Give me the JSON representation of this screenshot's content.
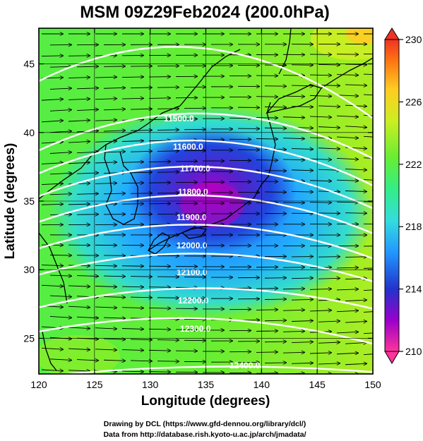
{
  "title": "MSM 09Z29Feb2024 (200.0hPa)",
  "x_axis": {
    "label": "Longitude (degrees)",
    "range": [
      120,
      150
    ],
    "ticks": [
      "120",
      "125",
      "130",
      "135",
      "140",
      "145",
      "150"
    ]
  },
  "y_axis": {
    "label": "Latitude  (degrees)",
    "range": [
      22.4,
      47.6
    ],
    "ticks": [
      "25",
      "30",
      "35",
      "40",
      "45"
    ]
  },
  "colorbar": {
    "range": [
      210,
      230
    ],
    "ticks": [
      "230",
      "226",
      "222",
      "218",
      "214",
      "210"
    ],
    "colors": [
      "#ff3399",
      "#9900cc",
      "#2233cc",
      "#2299ff",
      "#33dddd",
      "#33ee88",
      "#66ee33",
      "#ccee22",
      "#ffcc22",
      "#ff7711",
      "#ee3322"
    ]
  },
  "contours": {
    "color": "#ffffff",
    "labels": [
      "11500.0",
      "11600.0",
      "11700.0",
      "11800.0",
      "11900.0",
      "12000.0",
      "12100.0",
      "12200.0",
      "12300.0",
      "12400.0"
    ]
  },
  "credits": {
    "line1": "Drawing by DCL (https://www.gfd-dennou.org/library/dcl/)",
    "line2": "Data from http://database.rish.kyoto-u.ac.jp/arch/jmadata/"
  }
}
